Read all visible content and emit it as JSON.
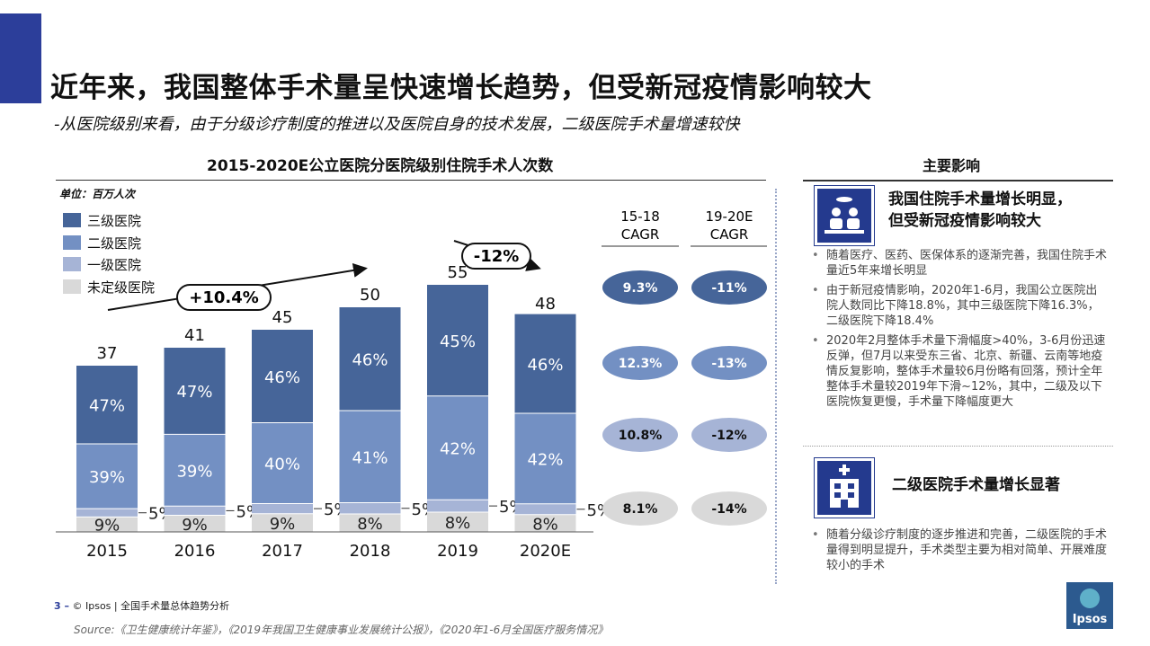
{
  "page": {
    "title": "近年来，我国整体手术量呈快速增长趋势，但受新冠疫情影响较大",
    "subtitle": "-从医院级别来看，由于分级诊疗制度的推进以及医院自身的技术发展，二级医院手术量增速较快"
  },
  "chart_data": {
    "type": "bar",
    "title": "2015-2020E公立医院分医院级别住院手术人次数",
    "unit": "单位：百万人次",
    "categories": [
      "2015",
      "2016",
      "2017",
      "2018",
      "2019",
      "2020E"
    ],
    "totals": [
      37,
      41,
      45,
      50,
      55,
      48
    ],
    "totals_labels": [
      "37",
      "41",
      "45",
      "50",
      "55",
      "48"
    ],
    "ylim": [
      0,
      60
    ],
    "legend_position": "top-left",
    "series": [
      {
        "name": "未定级医院",
        "color": "#d9d9d9",
        "values": [
          9,
          9,
          9,
          8,
          8,
          8
        ],
        "labels": [
          "9%",
          "9%",
          "9%",
          "8%",
          "8%",
          "8%"
        ],
        "label_color": "#222222"
      },
      {
        "name": "一级医院",
        "color": "#a6b4d6",
        "values": [
          5,
          5,
          5,
          5,
          5,
          5
        ],
        "labels": [
          "5%",
          "5%",
          "5%",
          "5%",
          "5%",
          "5%"
        ],
        "label_color": "#222222"
      },
      {
        "name": "二级医院",
        "color": "#7390c3",
        "values": [
          39,
          39,
          40,
          41,
          42,
          42
        ],
        "labels": [
          "39%",
          "39%",
          "40%",
          "41%",
          "42%",
          "42%"
        ],
        "label_color": "#ffffff"
      },
      {
        "name": "三级医院",
        "color": "#466599",
        "values": [
          47,
          47,
          46,
          46,
          45,
          46
        ],
        "labels": [
          "47%",
          "47%",
          "46%",
          "46%",
          "45%",
          "46%"
        ],
        "label_color": "#ffffff"
      }
    ],
    "annotations": {
      "growth": "+10.4%",
      "decline": "-12%"
    },
    "cagr": {
      "headers": [
        [
          "15-18",
          "CAGR"
        ],
        [
          "19-20E",
          "CAGR"
        ]
      ],
      "rows": [
        {
          "series": "三级医院",
          "values": [
            "9.3%",
            "-11%"
          ],
          "color": "#466599",
          "text_color": "#ffffff"
        },
        {
          "series": "二级医院",
          "values": [
            "12.3%",
            "-13%"
          ],
          "color": "#7390c3",
          "text_color": "#ffffff"
        },
        {
          "series": "一级医院",
          "values": [
            "10.8%",
            "-12%"
          ],
          "color": "#a6b4d6",
          "text_color": "#111111"
        },
        {
          "series": "未定级医院",
          "values": [
            "8.1%",
            "-14%"
          ],
          "color": "#d9d9d9",
          "text_color": "#111111"
        }
      ]
    }
  },
  "impact": {
    "title": "主要影响",
    "sections": [
      {
        "heading_lines": [
          "我国住院手术量增长明显，",
          "但受新冠疫情影响较大"
        ],
        "icon": "surgery-icon",
        "bullets": [
          "随着医疗、医药、医保体系的逐渐完善，我国住院手术量近5年来增长明显",
          "由于新冠疫情影响，2020年1-6月，我国公立医院出院人数同比下降18.8%，其中三级医院下降16.3%，二级医院下降18.4%",
          "2020年2月整体手术量下滑幅度>40%，3-6月份迅速反弹，但7月以来受东三省、北京、新疆、云南等地疫情反复影响，整体手术量较6月份略有回落，预计全年整体手术量较2019年下滑~12%，其中，二级及以下医院恢复更慢，手术量下降幅度更大"
        ]
      },
      {
        "heading_lines": [
          "二级医院手术量增长显著"
        ],
        "icon": "hospital-icon",
        "bullets": [
          "随着分级诊疗制度的逐步推进和完善，二级医院的手术量得到明显提升，手术类型主要为相对简单、开展难度较小的手术"
        ]
      }
    ]
  },
  "footer": {
    "page_number": "3 –",
    "text": "© Ipsos | 全国手术量总体趋势分析",
    "source": "Source:《卫生健康统计年鉴》，《2019年我国卫生健康事业发展统计公报》，《2020年1-6月全国医疗服务情况》",
    "logo_text": "Ipsos"
  }
}
